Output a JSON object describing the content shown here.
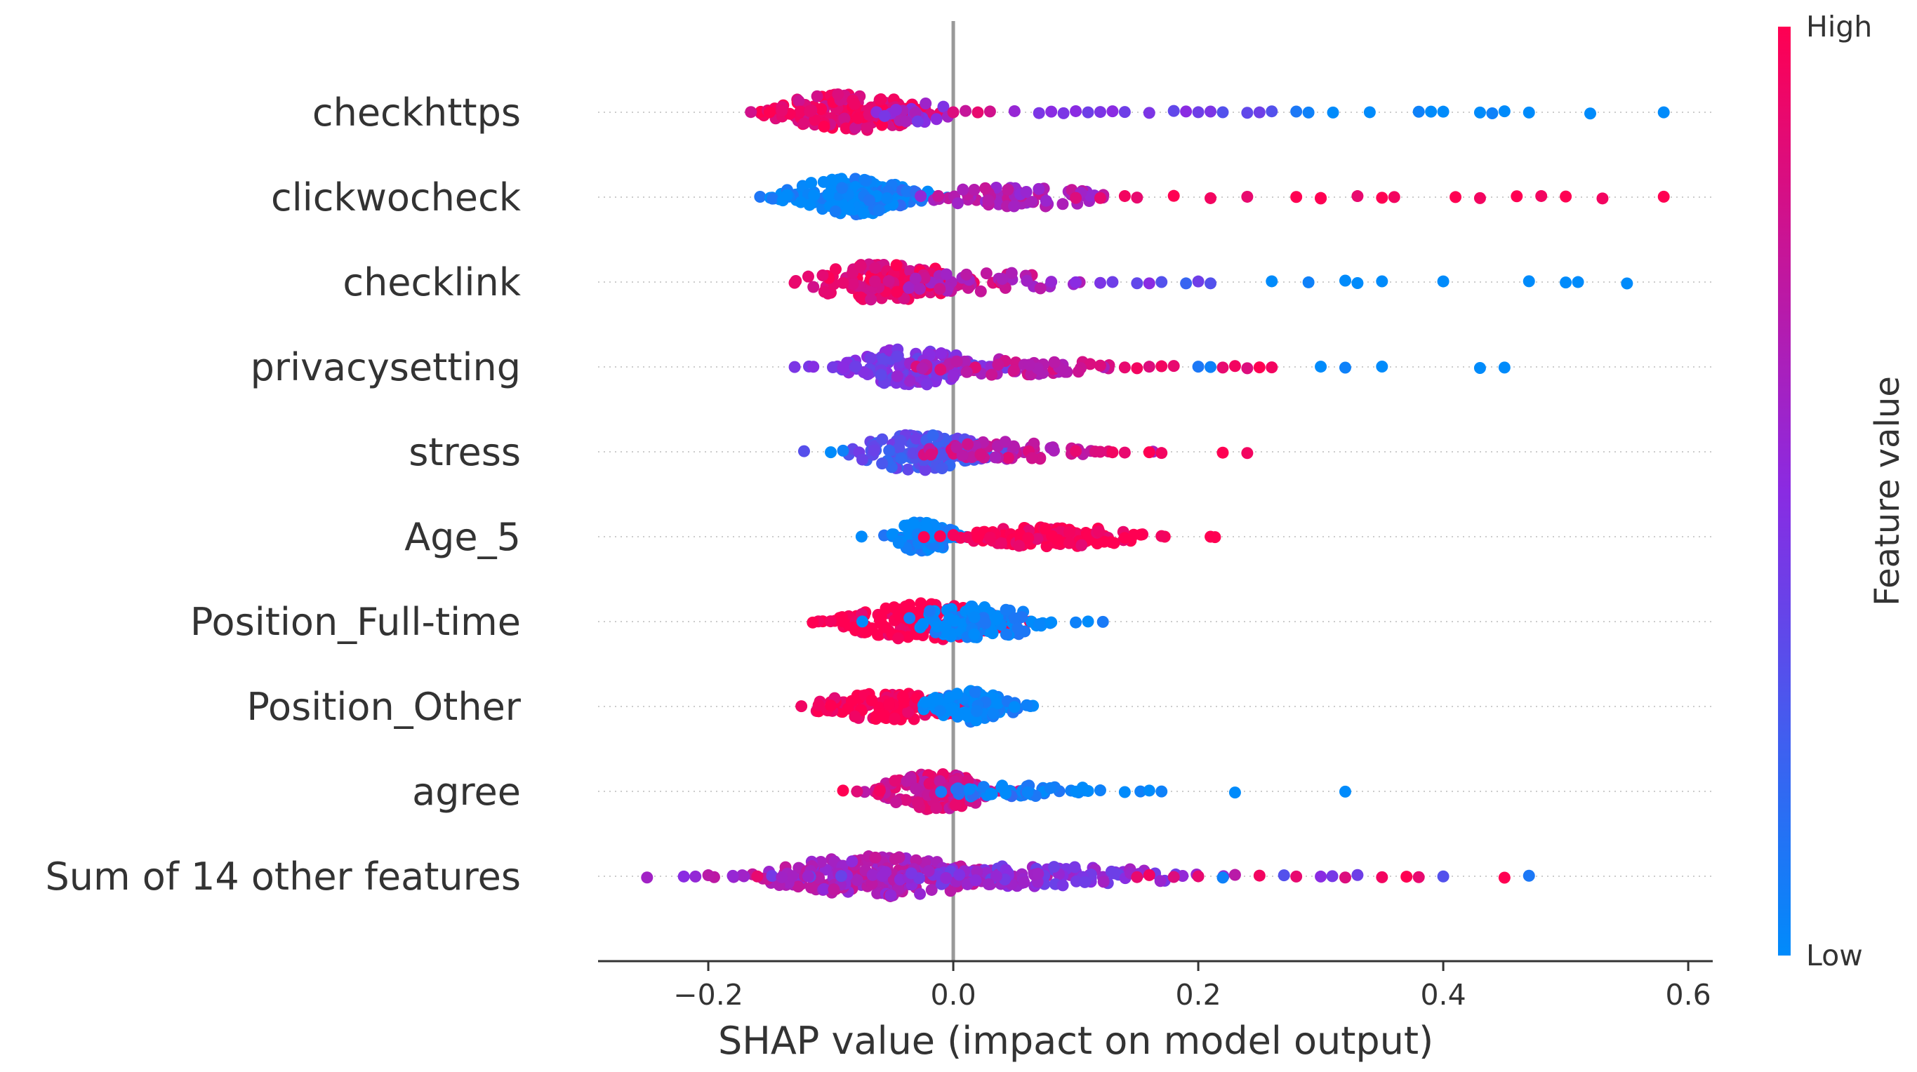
{
  "chart_data": {
    "type": "scatter",
    "subtype": "shap-beeswarm",
    "title": "",
    "xlabel": "SHAP value (impact on model output)",
    "ylabel": "",
    "xlim": [
      -0.29,
      0.62
    ],
    "xticks": [
      -0.2,
      0.0,
      0.2,
      0.4,
      0.6
    ],
    "xtick_labels": [
      "−0.2",
      "0.0",
      "0.2",
      "0.4",
      "0.6"
    ],
    "grid": false,
    "zero_line": true,
    "colors": {
      "low": "#008bfb",
      "mid": "#8a2be2",
      "high": "#ff0052",
      "axis": "#333333",
      "zero_line": "#999999",
      "row_guide": "#cccccc"
    },
    "colorbar": {
      "title": "Feature value",
      "high_label": "High",
      "low_label": "Low"
    },
    "features": [
      {
        "name": "checkhttps",
        "core": [
          {
            "center": -0.085,
            "spread": 0.035,
            "value": 0.9,
            "count": 150,
            "width": 0.55
          },
          {
            "center": -0.03,
            "spread": 0.015,
            "value": 0.55,
            "count": 25,
            "width": 0.35
          }
        ],
        "tail": [
          [
            -0.14,
            0.9
          ],
          [
            -0.15,
            1.0
          ],
          [
            0.0,
            0.85
          ],
          [
            0.01,
            0.75
          ],
          [
            0.02,
            0.9
          ],
          [
            0.03,
            0.8
          ],
          [
            0.05,
            0.55
          ],
          [
            0.07,
            0.45
          ],
          [
            0.08,
            0.5
          ],
          [
            0.09,
            0.45
          ],
          [
            0.1,
            0.5
          ],
          [
            0.11,
            0.4
          ],
          [
            0.12,
            0.45
          ],
          [
            0.13,
            0.5
          ],
          [
            0.14,
            0.4
          ],
          [
            0.16,
            0.45
          ],
          [
            0.18,
            0.35
          ],
          [
            0.19,
            0.5
          ],
          [
            0.2,
            0.4
          ],
          [
            0.21,
            0.45
          ],
          [
            0.22,
            0.3
          ],
          [
            0.24,
            0.35
          ],
          [
            0.25,
            0.4
          ],
          [
            0.26,
            0.3
          ],
          [
            0.28,
            0.1
          ],
          [
            0.29,
            0.05
          ],
          [
            0.31,
            0.0
          ],
          [
            0.34,
            0.0
          ],
          [
            0.38,
            0.05
          ],
          [
            0.39,
            0.0
          ],
          [
            0.4,
            0.0
          ],
          [
            0.43,
            0.0
          ],
          [
            0.44,
            0.05
          ],
          [
            0.45,
            0.0
          ],
          [
            0.47,
            0.0
          ],
          [
            0.52,
            0.0
          ],
          [
            0.58,
            0.0
          ]
        ]
      },
      {
        "name": "clickwocheck",
        "core": [
          {
            "center": -0.085,
            "spread": 0.03,
            "value": 0.0,
            "count": 140,
            "width": 0.55
          },
          {
            "center": -0.04,
            "spread": 0.018,
            "value": 0.05,
            "count": 15,
            "width": 0.25
          },
          {
            "center": 0.05,
            "spread": 0.04,
            "value": 0.65,
            "count": 70,
            "width": 0.3
          }
        ],
        "tail": [
          [
            0.1,
            0.85
          ],
          [
            0.12,
            0.9
          ],
          [
            0.14,
            0.95
          ],
          [
            0.15,
            0.9
          ],
          [
            0.18,
            1.0
          ],
          [
            0.21,
            0.95
          ],
          [
            0.24,
            0.9
          ],
          [
            0.28,
            1.0
          ],
          [
            0.3,
            0.95
          ],
          [
            0.3,
            1.0
          ],
          [
            0.33,
            0.9
          ],
          [
            0.35,
            1.0
          ],
          [
            0.36,
            0.95
          ],
          [
            0.41,
            1.0
          ],
          [
            0.43,
            0.95
          ],
          [
            0.46,
            1.0
          ],
          [
            0.48,
            0.95
          ],
          [
            0.5,
            1.0
          ],
          [
            0.53,
            0.95
          ],
          [
            0.58,
            1.0
          ]
        ]
      },
      {
        "name": "checklink",
        "core": [
          {
            "center": -0.055,
            "spread": 0.035,
            "value": 0.9,
            "count": 150,
            "width": 0.55
          },
          {
            "center": 0.02,
            "spread": 0.04,
            "value": 0.7,
            "count": 40,
            "width": 0.3
          }
        ],
        "tail": [
          [
            -0.09,
            0.9
          ],
          [
            0.06,
            0.6
          ],
          [
            0.08,
            0.55
          ],
          [
            0.1,
            0.5
          ],
          [
            0.12,
            0.45
          ],
          [
            0.13,
            0.4
          ],
          [
            0.15,
            0.35
          ],
          [
            0.16,
            0.5
          ],
          [
            0.17,
            0.3
          ],
          [
            0.19,
            0.2
          ],
          [
            0.2,
            0.4
          ],
          [
            0.21,
            0.3
          ],
          [
            0.26,
            0.0
          ],
          [
            0.29,
            0.05
          ],
          [
            0.32,
            0.0
          ],
          [
            0.33,
            0.0
          ],
          [
            0.35,
            0.0
          ],
          [
            0.4,
            0.0
          ],
          [
            0.47,
            0.0
          ],
          [
            0.5,
            0.0
          ],
          [
            0.51,
            0.0
          ],
          [
            0.55,
            0.0
          ]
        ]
      },
      {
        "name": "privacysetting",
        "core": [
          {
            "center": -0.035,
            "spread": 0.028,
            "value": 0.45,
            "count": 140,
            "width": 0.55
          },
          {
            "center": 0.05,
            "spread": 0.04,
            "value": 0.75,
            "count": 50,
            "width": 0.25
          }
        ],
        "tail": [
          [
            -0.09,
            0.5
          ],
          [
            -0.08,
            0.4
          ],
          [
            0.12,
            0.85
          ],
          [
            0.14,
            0.9
          ],
          [
            0.15,
            0.95
          ],
          [
            0.16,
            0.85
          ],
          [
            0.17,
            0.95
          ],
          [
            0.18,
            0.9
          ],
          [
            0.2,
            0.1
          ],
          [
            0.21,
            0.05
          ],
          [
            0.22,
            0.9
          ],
          [
            0.23,
            0.95
          ],
          [
            0.24,
            0.85
          ],
          [
            0.25,
            1.0
          ],
          [
            0.26,
            0.95
          ],
          [
            0.3,
            0.0
          ],
          [
            0.32,
            0.05
          ],
          [
            0.35,
            0.0
          ],
          [
            0.43,
            0.0
          ],
          [
            0.45,
            0.0
          ]
        ]
      },
      {
        "name": "stress",
        "core": [
          {
            "center": -0.025,
            "spread": 0.03,
            "value": 0.3,
            "count": 130,
            "width": 0.55
          },
          {
            "center": 0.04,
            "spread": 0.035,
            "value": 0.75,
            "count": 60,
            "width": 0.3
          }
        ],
        "tail": [
          [
            -0.1,
            0.0
          ],
          [
            -0.09,
            0.05
          ],
          [
            0.1,
            0.9
          ],
          [
            0.12,
            0.85
          ],
          [
            0.13,
            0.95
          ],
          [
            0.14,
            0.9
          ],
          [
            0.16,
            1.0
          ],
          [
            0.17,
            0.95
          ],
          [
            0.22,
            1.0
          ],
          [
            0.24,
            0.95
          ]
        ]
      },
      {
        "name": "Age_5",
        "core": [
          {
            "center": -0.025,
            "spread": 0.015,
            "value": 0.0,
            "count": 90,
            "width": 0.45
          },
          {
            "center": 0.08,
            "spread": 0.04,
            "value": 1.0,
            "count": 120,
            "width": 0.3
          }
        ],
        "tail": [
          [
            0.02,
            1.0
          ],
          [
            0.03,
            0.95
          ],
          [
            0.14,
            1.0
          ],
          [
            0.17,
            0.95
          ]
        ]
      },
      {
        "name": "Position_Full-time",
        "core": [
          {
            "center": -0.025,
            "spread": 0.035,
            "value": 1.0,
            "count": 140,
            "width": 0.55
          },
          {
            "center": 0.02,
            "spread": 0.03,
            "value": 0.0,
            "count": 100,
            "width": 0.5
          }
        ],
        "tail": [
          [
            -0.09,
            1.0
          ],
          [
            0.08,
            0.0
          ],
          [
            0.1,
            0.05
          ],
          [
            0.11,
            0.0
          ]
        ]
      },
      {
        "name": "Position_Other",
        "core": [
          {
            "center": -0.05,
            "spread": 0.035,
            "value": 1.0,
            "count": 140,
            "width": 0.4
          },
          {
            "center": 0.015,
            "spread": 0.02,
            "value": 0.0,
            "count": 90,
            "width": 0.5
          }
        ],
        "tail": [
          [
            -0.1,
            1.0
          ],
          [
            -0.11,
            0.95
          ],
          [
            0.05,
            0.0
          ],
          [
            0.06,
            0.05
          ]
        ]
      },
      {
        "name": "agree",
        "core": [
          {
            "center": -0.015,
            "spread": 0.025,
            "value": 0.8,
            "count": 150,
            "width": 0.55
          },
          {
            "center": 0.05,
            "spread": 0.04,
            "value": 0.05,
            "count": 50,
            "width": 0.2
          }
        ],
        "tail": [
          [
            -0.09,
            1.0
          ],
          [
            -0.06,
            0.95
          ],
          [
            0.1,
            0.0
          ],
          [
            0.12,
            0.05
          ],
          [
            0.14,
            0.0
          ],
          [
            0.16,
            0.0
          ],
          [
            0.17,
            0.05
          ],
          [
            0.23,
            0.0
          ],
          [
            0.32,
            0.0
          ]
        ]
      },
      {
        "name": "Sum of 14 other features",
        "core": [
          {
            "center": -0.06,
            "spread": 0.05,
            "value": 0.65,
            "count": 220,
            "width": 0.6
          },
          {
            "center": 0.06,
            "spread": 0.07,
            "value": 0.5,
            "count": 120,
            "width": 0.3
          }
        ],
        "tail": [
          [
            -0.25,
            0.6
          ],
          [
            -0.22,
            0.5
          ],
          [
            -0.2,
            0.7
          ],
          [
            -0.18,
            0.55
          ],
          [
            -0.16,
            0.9
          ],
          [
            -0.14,
            0.6
          ],
          [
            0.15,
            0.9
          ],
          [
            0.16,
            0.95
          ],
          [
            0.18,
            0.85
          ],
          [
            0.2,
            0.9
          ],
          [
            0.22,
            0.05
          ],
          [
            0.23,
            0.7
          ],
          [
            0.25,
            0.95
          ],
          [
            0.27,
            0.3
          ],
          [
            0.28,
            0.9
          ],
          [
            0.3,
            0.5
          ],
          [
            0.32,
            0.85
          ],
          [
            0.33,
            0.4
          ],
          [
            0.35,
            0.95
          ],
          [
            0.37,
            1.0
          ],
          [
            0.38,
            0.9
          ],
          [
            0.4,
            0.3
          ],
          [
            0.45,
            1.0
          ],
          [
            0.47,
            0.1
          ]
        ]
      }
    ]
  }
}
